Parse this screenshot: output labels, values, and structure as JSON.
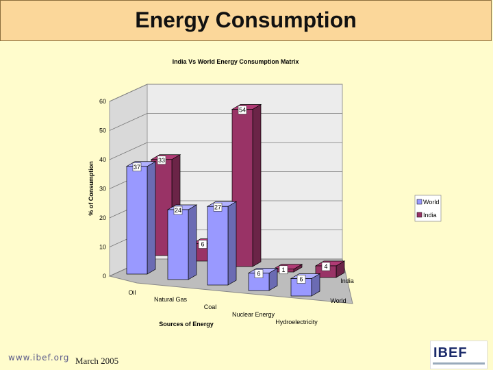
{
  "slide": {
    "title": "Energy Consumption",
    "footer_url": "www.ibef.org",
    "footer_date": "March 2005",
    "logo_text": "IBEF"
  },
  "chart_data": {
    "type": "bar",
    "title": "India Vs World Energy Consumption Matrix",
    "xlabel": "Sources of Energy",
    "ylabel": "% of Consumption",
    "categories": [
      "Oil",
      "Natural Gas",
      "Coal",
      "Nuclear Energy",
      "Hydroelectricity"
    ],
    "series": [
      {
        "name": "World",
        "values": [
          37,
          24,
          27,
          6,
          6
        ],
        "color": "#9999ff"
      },
      {
        "name": "India",
        "values": [
          33,
          6,
          54,
          1,
          4
        ],
        "color": "#993366"
      }
    ],
    "ylim": [
      0,
      60
    ],
    "yticks": [
      0,
      10,
      20,
      30,
      40,
      50,
      60
    ],
    "depth_labels": [
      "India",
      "World"
    ],
    "legend": "right",
    "grid": true
  }
}
